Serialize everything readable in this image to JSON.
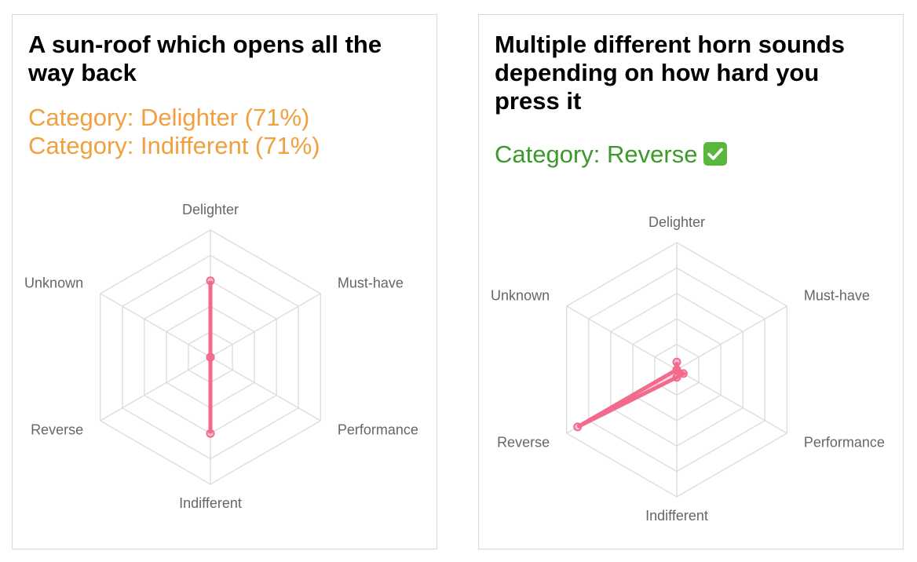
{
  "colors": {
    "delighter_text": "#f0a03e",
    "reverse_text": "#3a9a2a",
    "series": "#f26a8d",
    "grid": "#dddddd",
    "check_icon": "#59b83c"
  },
  "cards": [
    {
      "title": "A sun-roof which opens all the way back",
      "categories_text": [
        "Category: Delighter (71%)",
        "Category: Indifferent (71%)"
      ]
    },
    {
      "title": "Multiple different horn sounds depending on how hard you press it",
      "categories_text": [
        "Category: Reverse"
      ],
      "icon": "check-mark-icon"
    }
  ],
  "chart_data": [
    {
      "type": "radar",
      "axes": [
        "Delighter",
        "Must-have",
        "Performance",
        "Indifferent",
        "Reverse",
        "Unknown"
      ],
      "rlim": [
        0,
        5
      ],
      "grid": true,
      "series": [
        {
          "values": [
            3,
            0,
            0,
            3,
            0,
            0
          ]
        }
      ]
    },
    {
      "type": "radar",
      "axes": [
        "Delighter",
        "Must-have",
        "Performance",
        "Indifferent",
        "Reverse",
        "Unknown"
      ],
      "rlim": [
        0,
        5
      ],
      "grid": true,
      "series": [
        {
          "values": [
            0.3,
            0,
            0.3,
            0.3,
            4.5,
            0
          ]
        }
      ]
    }
  ]
}
